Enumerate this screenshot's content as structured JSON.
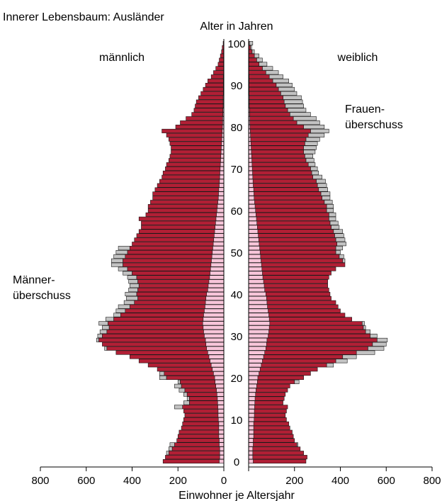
{
  "chart_data": {
    "type": "bar",
    "title": "Innerer Lebensbaum: Ausländer",
    "age_label": "Alter in Jahren",
    "xlabel": "Einwohner je Altersjahr",
    "left_label": "männlich",
    "right_label": "weiblich",
    "surplus_left": [
      "Männer-",
      "überschuss"
    ],
    "surplus_right": [
      "Frauen-",
      "überschuss"
    ],
    "xlim": [
      0,
      800
    ],
    "x_ticks": [
      800,
      600,
      400,
      200,
      0,
      200,
      400,
      600,
      800
    ],
    "age_ticks": [
      0,
      10,
      20,
      30,
      40,
      50,
      60,
      70,
      80,
      90,
      100
    ],
    "ages": [
      0,
      1,
      2,
      3,
      4,
      5,
      6,
      7,
      8,
      9,
      10,
      11,
      12,
      13,
      14,
      15,
      16,
      17,
      18,
      19,
      20,
      21,
      22,
      23,
      24,
      25,
      26,
      27,
      28,
      29,
      30,
      31,
      32,
      33,
      34,
      35,
      36,
      37,
      38,
      39,
      40,
      41,
      42,
      43,
      44,
      45,
      46,
      47,
      48,
      49,
      50,
      51,
      52,
      53,
      54,
      55,
      56,
      57,
      58,
      59,
      60,
      61,
      62,
      63,
      64,
      65,
      66,
      67,
      68,
      69,
      70,
      71,
      72,
      73,
      74,
      75,
      76,
      77,
      78,
      79,
      80,
      81,
      82,
      83,
      84,
      85,
      86,
      87,
      88,
      89,
      90,
      91,
      92,
      93,
      94,
      95,
      96,
      97,
      98,
      99,
      100
    ],
    "series": [
      {
        "name": "männlich",
        "values": [
          265,
          255,
          240,
          225,
          215,
          205,
          200,
          195,
          185,
          180,
          175,
          170,
          175,
          180,
          150,
          150,
          160,
          170,
          185,
          190,
          250,
          260,
          290,
          330,
          370,
          410,
          470,
          510,
          530,
          545,
          530,
          510,
          500,
          505,
          480,
          450,
          430,
          410,
          390,
          375,
          380,
          375,
          370,
          375,
          380,
          400,
          420,
          440,
          440,
          430,
          420,
          410,
          400,
          390,
          380,
          370,
          360,
          360,
          370,
          340,
          330,
          330,
          320,
          310,
          310,
          300,
          290,
          280,
          270,
          265,
          255,
          250,
          240,
          235,
          230,
          230,
          235,
          240,
          250,
          270,
          210,
          190,
          165,
          140,
          130,
          125,
          120,
          110,
          100,
          90,
          80,
          70,
          55,
          45,
          35,
          25,
          20,
          15,
          10,
          7,
          3
        ],
        "group": "left"
      },
      {
        "name": "weiblich",
        "values": [
          250,
          255,
          240,
          225,
          210,
          200,
          195,
          190,
          180,
          175,
          165,
          160,
          165,
          170,
          150,
          155,
          160,
          170,
          180,
          200,
          240,
          270,
          300,
          340,
          380,
          410,
          470,
          520,
          540,
          560,
          530,
          510,
          500,
          495,
          450,
          420,
          400,
          390,
          380,
          360,
          355,
          350,
          345,
          345,
          350,
          360,
          380,
          420,
          410,
          395,
          380,
          380,
          385,
          380,
          375,
          370,
          360,
          355,
          350,
          350,
          340,
          340,
          330,
          320,
          315,
          305,
          300,
          295,
          280,
          275,
          270,
          260,
          250,
          245,
          240,
          240,
          245,
          250,
          260,
          270,
          240,
          210,
          195,
          180,
          170,
          160,
          155,
          150,
          140,
          130,
          120,
          105,
          90,
          75,
          60,
          45,
          35,
          25,
          15,
          8,
          3
        ],
        "group": "right"
      },
      {
        "name": "Frauenüberschuss",
        "values": [
          0,
          0,
          0,
          0,
          5,
          0,
          0,
          0,
          0,
          0,
          0,
          0,
          0,
          0,
          0,
          0,
          0,
          0,
          0,
          20,
          0,
          0,
          0,
          30,
          50,
          60,
          80,
          70,
          60,
          45,
          30,
          20,
          10,
          10,
          0,
          0,
          0,
          0,
          0,
          0,
          0,
          0,
          0,
          0,
          0,
          0,
          0,
          0,
          10,
          20,
          20,
          30,
          40,
          40,
          40,
          40,
          35,
          35,
          30,
          30,
          30,
          30,
          35,
          35,
          40,
          40,
          40,
          40,
          40,
          30,
          30,
          30,
          35,
          35,
          50,
          55,
          55,
          60,
          70,
          80,
          90,
          100,
          100,
          90,
          80,
          80,
          80,
          80,
          70,
          70,
          70,
          70,
          60,
          55,
          45,
          35,
          25,
          20,
          10,
          5,
          15
        ],
        "group": "right"
      },
      {
        "name": "Männerüberschuss",
        "values": [
          0,
          0,
          10,
          15,
          20,
          0,
          0,
          0,
          0,
          0,
          0,
          0,
          0,
          35,
          25,
          10,
          15,
          25,
          30,
          10,
          30,
          20,
          0,
          0,
          0,
          0,
          0,
          10,
          0,
          10,
          20,
          30,
          30,
          40,
          35,
          30,
          40,
          50,
          45,
          50,
          50,
          40,
          40,
          40,
          40,
          40,
          40,
          50,
          50,
          50,
          50,
          50,
          0,
          0,
          0,
          0,
          0,
          0,
          0,
          0,
          0,
          0,
          0,
          0,
          0,
          0,
          0,
          0,
          0,
          0,
          0,
          0,
          0,
          0,
          0,
          0,
          0,
          0,
          0,
          0,
          0,
          0,
          0,
          0,
          0,
          0,
          0,
          0,
          0,
          0,
          0,
          0,
          0,
          0,
          0,
          0,
          0,
          0,
          0,
          0,
          0
        ],
        "group": "left"
      },
      {
        "name": "Kern",
        "values": [
          20,
          18,
          18,
          18,
          20,
          20,
          22,
          22,
          22,
          22,
          24,
          25,
          25,
          26,
          27,
          28,
          30,
          32,
          35,
          38,
          40,
          45,
          50,
          55,
          60,
          65,
          70,
          75,
          78,
          80,
          85,
          88,
          90,
          92,
          90,
          88,
          85,
          82,
          80,
          78,
          75,
          70,
          68,
          65,
          62,
          60,
          58,
          56,
          54,
          52,
          50,
          48,
          46,
          44,
          42,
          40,
          38,
          36,
          34,
          32,
          30,
          28,
          26,
          24,
          23,
          22,
          20,
          19,
          18,
          17,
          16,
          15,
          14,
          13,
          12,
          11,
          10,
          9,
          8,
          7,
          6,
          5,
          5,
          4,
          4,
          3,
          3,
          3,
          2,
          2,
          2,
          2,
          2,
          1,
          1,
          1,
          1,
          1,
          1,
          1,
          1
        ],
        "group": "center"
      }
    ]
  },
  "colors": {
    "male": "#b11f35",
    "female": "#b11f35",
    "surplus": "#c2c2c2",
    "core": "#f7c5d9",
    "outline": "#1a1a1a"
  }
}
